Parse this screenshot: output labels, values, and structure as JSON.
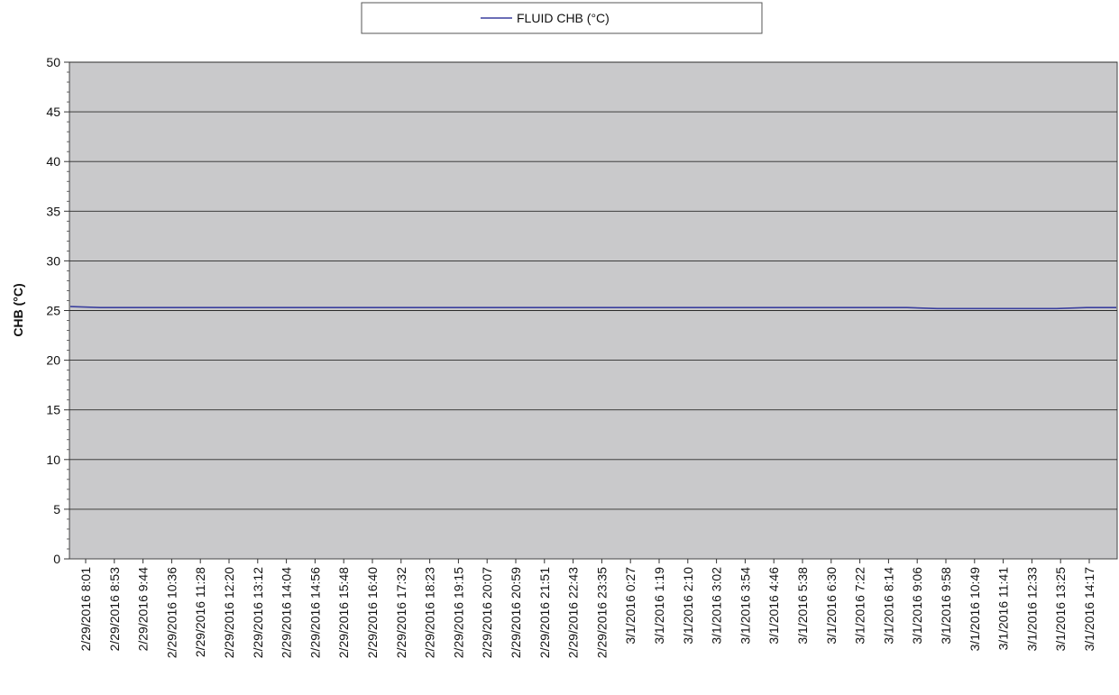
{
  "chart_data": {
    "type": "line",
    "title": "",
    "xlabel": "",
    "ylabel": "CHB (°C)",
    "ylim": [
      0,
      50
    ],
    "y_ticks": [
      0,
      5,
      10,
      15,
      20,
      25,
      30,
      35,
      40,
      45,
      50
    ],
    "grid": true,
    "legend_position": "top-center",
    "plot_background": "#c9c9cb",
    "x_categories": [
      "2/29/2016 8:01",
      "2/29/2016 8:53",
      "2/29/2016 9:44",
      "2/29/2016 10:36",
      "2/29/2016 11:28",
      "2/29/2016 12:20",
      "2/29/2016 13:12",
      "2/29/2016 14:04",
      "2/29/2016 14:56",
      "2/29/2016 15:48",
      "2/29/2016 16:40",
      "2/29/2016 17:32",
      "2/29/2016 18:23",
      "2/29/2016 19:15",
      "2/29/2016 20:07",
      "2/29/2016 20:59",
      "2/29/2016 21:51",
      "2/29/2016 22:43",
      "2/29/2016 23:35",
      "3/1/2016 0:27",
      "3/1/2016 1:19",
      "3/1/2016 2:10",
      "3/1/2016 3:02",
      "3/1/2016 3:54",
      "3/1/2016 4:46",
      "3/1/2016 5:38",
      "3/1/2016 6:30",
      "3/1/2016 7:22",
      "3/1/2016 8:14",
      "3/1/2016 9:06",
      "3/1/2016 9:58",
      "3/1/2016 10:49",
      "3/1/2016 11:41",
      "3/1/2016 12:33",
      "3/1/2016 13:25",
      "3/1/2016 14:17"
    ],
    "series": [
      {
        "name": "FLUID CHB (°C)",
        "color": "#3a3f9e",
        "values": [
          25.4,
          25.3,
          25.3,
          25.3,
          25.3,
          25.3,
          25.3,
          25.3,
          25.3,
          25.3,
          25.3,
          25.3,
          25.3,
          25.3,
          25.3,
          25.3,
          25.3,
          25.3,
          25.3,
          25.3,
          25.3,
          25.3,
          25.3,
          25.3,
          25.3,
          25.3,
          25.3,
          25.3,
          25.3,
          25.2,
          25.2,
          25.2,
          25.2,
          25.2,
          25.3,
          25.3
        ]
      }
    ]
  }
}
